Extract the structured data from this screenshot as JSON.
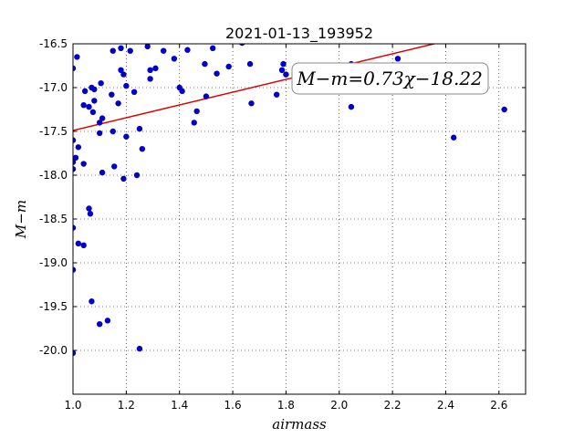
{
  "chart_data": {
    "type": "scatter",
    "title": "2021-01-13_193952",
    "xlabel": "airmass",
    "ylabel": "M−m",
    "xlim": [
      1.0,
      2.7
    ],
    "ylim": [
      -20.5,
      -16.5
    ],
    "y_inverted": true,
    "xticks": [
      "1.0",
      "1.2",
      "1.4",
      "1.6",
      "1.8",
      "2.0",
      "2.2",
      "2.4",
      "2.6"
    ],
    "yticks": [
      "-16.5",
      "-17.0",
      "-17.5",
      "-18.0",
      "-18.5",
      "-19.0",
      "-19.5",
      "-20.0"
    ],
    "grid": true,
    "point_color": "#0000c8",
    "line_color": "#e00000",
    "fit": {
      "slope": 0.73,
      "intercept": -18.22,
      "x_range": [
        1.0,
        2.38
      ]
    },
    "annotation": "M−m=0.73χ−18.22",
    "points": [
      [
        1.0,
        -16.78
      ],
      [
        1.0,
        -17.6
      ],
      [
        1.0,
        -17.85
      ],
      [
        1.0,
        -17.93
      ],
      [
        1.0,
        -18.6
      ],
      [
        1.0,
        -19.08
      ],
      [
        1.0,
        -20.03
      ],
      [
        1.01,
        -17.8
      ],
      [
        1.015,
        -16.65
      ],
      [
        1.02,
        -17.68
      ],
      [
        1.02,
        -18.78
      ],
      [
        1.04,
        -17.2
      ],
      [
        1.04,
        -17.87
      ],
      [
        1.04,
        -18.8
      ],
      [
        1.045,
        -17.04
      ],
      [
        1.06,
        -17.22
      ],
      [
        1.06,
        -18.38
      ],
      [
        1.065,
        -18.44
      ],
      [
        1.07,
        -17.0
      ],
      [
        1.07,
        -19.44
      ],
      [
        1.075,
        -17.28
      ],
      [
        1.08,
        -17.02
      ],
      [
        1.08,
        -17.15
      ],
      [
        1.1,
        -17.4
      ],
      [
        1.1,
        -17.52
      ],
      [
        1.1,
        -19.7
      ],
      [
        1.105,
        -16.95
      ],
      [
        1.11,
        -17.35
      ],
      [
        1.11,
        -17.97
      ],
      [
        1.13,
        -19.66
      ],
      [
        1.145,
        -17.08
      ],
      [
        1.15,
        -16.58
      ],
      [
        1.15,
        -17.5
      ],
      [
        1.155,
        -17.9
      ],
      [
        1.17,
        -17.18
      ],
      [
        1.18,
        -16.55
      ],
      [
        1.18,
        -16.8
      ],
      [
        1.19,
        -16.85
      ],
      [
        1.19,
        -18.04
      ],
      [
        1.2,
        -16.98
      ],
      [
        1.2,
        -17.56
      ],
      [
        1.215,
        -16.58
      ],
      [
        1.23,
        -17.05
      ],
      [
        1.24,
        -18.0
      ],
      [
        1.25,
        -17.47
      ],
      [
        1.25,
        -19.98
      ],
      [
        1.26,
        -17.7
      ],
      [
        1.28,
        -16.53
      ],
      [
        1.29,
        -16.8
      ],
      [
        1.29,
        -16.9
      ],
      [
        1.31,
        -16.78
      ],
      [
        1.34,
        -16.58
      ],
      [
        1.38,
        -16.67
      ],
      [
        1.4,
        -17.0
      ],
      [
        1.41,
        -17.04
      ],
      [
        1.43,
        -16.57
      ],
      [
        1.455,
        -17.4
      ],
      [
        1.465,
        -17.27
      ],
      [
        1.495,
        -16.73
      ],
      [
        1.5,
        -17.1
      ],
      [
        1.525,
        -16.55
      ],
      [
        1.54,
        -16.84
      ],
      [
        1.585,
        -16.76
      ],
      [
        1.635,
        -16.49
      ],
      [
        1.665,
        -16.73
      ],
      [
        1.67,
        -17.18
      ],
      [
        1.765,
        -17.08
      ],
      [
        1.785,
        -16.8
      ],
      [
        1.79,
        -16.73
      ],
      [
        1.8,
        -16.85
      ],
      [
        2.045,
        -16.73
      ],
      [
        2.045,
        -17.22
      ],
      [
        2.22,
        -16.67
      ],
      [
        2.43,
        -17.57
      ],
      [
        2.62,
        -17.25
      ]
    ]
  }
}
